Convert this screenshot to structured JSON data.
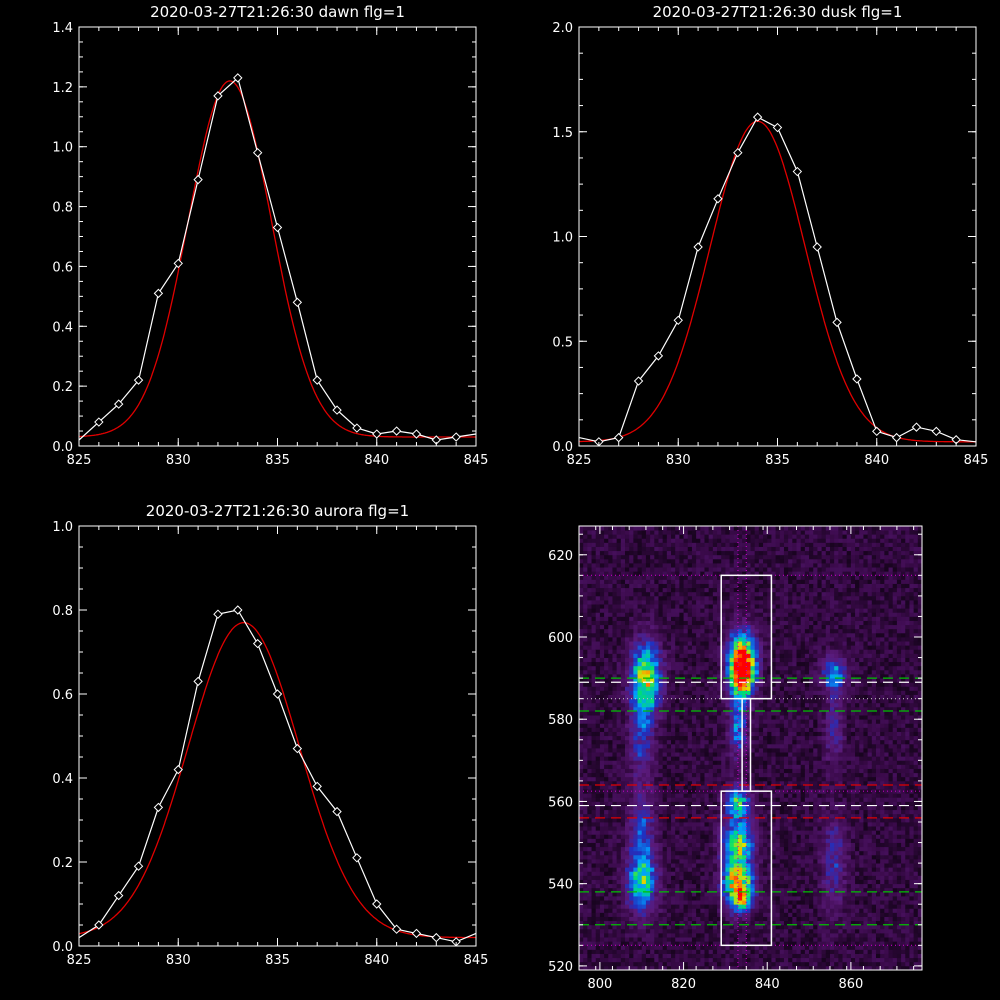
{
  "chart_data": [
    {
      "id": "dawn",
      "type": "line",
      "title": "2020-03-27T21:26:30 dawn flg=1",
      "xlim": [
        825,
        845
      ],
      "ylim": [
        0,
        1.4
      ],
      "xticks": [
        "825",
        "830",
        "835",
        "840",
        "845"
      ],
      "yticks": [
        "0.0",
        "0.2",
        "0.4",
        "0.6",
        "0.8",
        "1.0",
        "1.2",
        "1.4"
      ],
      "xtick_values": [
        825,
        830,
        835,
        840,
        845
      ],
      "ytick_values": [
        0,
        0.2,
        0.4,
        0.6,
        0.8,
        1.0,
        1.2,
        1.4
      ],
      "series": [
        {
          "style": "white-diamond-line",
          "x": [
            825,
            826,
            827,
            828,
            829,
            830,
            831,
            832,
            833,
            834,
            835,
            836,
            837,
            838,
            839,
            840,
            841,
            842,
            843,
            844,
            845
          ],
          "y": [
            0.02,
            0.08,
            0.14,
            0.22,
            0.51,
            0.61,
            0.89,
            1.17,
            1.23,
            0.98,
            0.73,
            0.48,
            0.22,
            0.12,
            0.06,
            0.04,
            0.05,
            0.04,
            0.02,
            0.03,
            0.04
          ]
        },
        {
          "style": "red-gaussian-fit",
          "amplitude": 1.19,
          "center": 832.6,
          "sigma": 2.1,
          "baseline": 0.03
        }
      ],
      "colors": {
        "data": "#ffffff",
        "fit": "#e00000"
      }
    },
    {
      "id": "dusk",
      "type": "line",
      "title": "2020-03-27T21:26:30 dusk flg=1",
      "xlim": [
        825,
        845
      ],
      "ylim": [
        0,
        2.0
      ],
      "xticks": [
        "825",
        "830",
        "835",
        "840",
        "845"
      ],
      "yticks": [
        "0.0",
        "0.5",
        "1.0",
        "1.5",
        "2.0"
      ],
      "xtick_values": [
        825,
        830,
        835,
        840,
        845
      ],
      "ytick_values": [
        0,
        0.5,
        1.0,
        1.5,
        2.0
      ],
      "series": [
        {
          "style": "white-diamond-line",
          "x": [
            825,
            826,
            827,
            828,
            829,
            830,
            831,
            832,
            833,
            834,
            835,
            836,
            837,
            838,
            839,
            840,
            841,
            842,
            843,
            844,
            845
          ],
          "y": [
            0.04,
            0.02,
            0.04,
            0.31,
            0.43,
            0.6,
            0.95,
            1.18,
            1.4,
            1.57,
            1.52,
            1.31,
            0.95,
            0.59,
            0.32,
            0.07,
            0.04,
            0.09,
            0.07,
            0.03,
            0.02
          ]
        },
        {
          "style": "red-gaussian-fit",
          "amplitude": 1.53,
          "center": 834.0,
          "sigma": 2.4,
          "baseline": 0.02
        }
      ],
      "colors": {
        "data": "#ffffff",
        "fit": "#e00000"
      }
    },
    {
      "id": "aurora",
      "type": "line",
      "title": "2020-03-27T21:26:30 aurora flg=1",
      "xlim": [
        825,
        845
      ],
      "ylim": [
        0,
        1.0
      ],
      "xticks": [
        "825",
        "830",
        "835",
        "840",
        "845"
      ],
      "yticks": [
        "0.0",
        "0.2",
        "0.4",
        "0.6",
        "0.8",
        "1.0"
      ],
      "xtick_values": [
        825,
        830,
        835,
        840,
        845
      ],
      "ytick_values": [
        0,
        0.2,
        0.4,
        0.6,
        0.8,
        1.0
      ],
      "series": [
        {
          "style": "white-diamond-line",
          "x": [
            825,
            826,
            827,
            828,
            829,
            830,
            831,
            832,
            833,
            834,
            835,
            836,
            837,
            838,
            839,
            840,
            841,
            842,
            843,
            844,
            845
          ],
          "y": [
            0.02,
            0.05,
            0.12,
            0.19,
            0.33,
            0.42,
            0.63,
            0.79,
            0.8,
            0.72,
            0.6,
            0.47,
            0.38,
            0.32,
            0.21,
            0.1,
            0.04,
            0.03,
            0.02,
            0.01,
            0.03
          ]
        },
        {
          "style": "red-gaussian-fit",
          "amplitude": 0.75,
          "center": 833.3,
          "sigma": 2.8,
          "baseline": 0.02
        }
      ],
      "colors": {
        "data": "#ffffff",
        "fit": "#e00000"
      }
    },
    {
      "id": "image",
      "type": "heatmap",
      "title": "",
      "xlim": [
        795,
        877
      ],
      "ylim": [
        519,
        627
      ],
      "xticks": [
        "800",
        "820",
        "840",
        "860"
      ],
      "yticks": [
        "520",
        "540",
        "560",
        "580",
        "600",
        "620"
      ],
      "xtick_values": [
        800,
        820,
        840,
        860
      ],
      "ytick_values": [
        520,
        540,
        560,
        580,
        600,
        620
      ],
      "colormap": [
        "#000000",
        "#3a0a4a",
        "#5a1a7a",
        "#2030c0",
        "#00a0ff",
        "#00e070",
        "#e0e000",
        "#ff8000",
        "#ff0000"
      ],
      "blobs": [
        {
          "x": 811,
          "y": 590,
          "sx": 2.5,
          "sy": 6,
          "amp": 0.62
        },
        {
          "x": 810,
          "y": 575,
          "sx": 2.0,
          "sy": 7,
          "amp": 0.25
        },
        {
          "x": 810,
          "y": 540,
          "sx": 2.5,
          "sy": 5,
          "amp": 0.5
        },
        {
          "x": 810,
          "y": 553,
          "sx": 2.0,
          "sy": 6,
          "amp": 0.3
        },
        {
          "x": 834,
          "y": 591,
          "sx": 2.0,
          "sy": 4,
          "amp": 1.0
        },
        {
          "x": 834,
          "y": 597,
          "sx": 2.5,
          "sy": 4,
          "amp": 0.45
        },
        {
          "x": 833,
          "y": 578,
          "sx": 1.5,
          "sy": 5,
          "amp": 0.35
        },
        {
          "x": 833,
          "y": 550,
          "sx": 2.5,
          "sy": 4,
          "amp": 0.55
        },
        {
          "x": 833,
          "y": 540,
          "sx": 2.5,
          "sy": 4,
          "amp": 0.7
        },
        {
          "x": 834,
          "y": 536,
          "sx": 1.5,
          "sy": 2,
          "amp": 0.35
        },
        {
          "x": 833,
          "y": 560,
          "sx": 2.0,
          "sy": 3,
          "amp": 0.45
        },
        {
          "x": 856,
          "y": 591,
          "sx": 2.0,
          "sy": 3,
          "amp": 0.4
        },
        {
          "x": 856,
          "y": 577,
          "sx": 1.5,
          "sy": 6,
          "amp": 0.2
        },
        {
          "x": 856,
          "y": 545,
          "sx": 2.0,
          "sy": 8,
          "amp": 0.22
        }
      ],
      "boxes": [
        {
          "x0": 829,
          "x1": 841,
          "y0": 585,
          "y1": 615
        },
        {
          "x0": 829,
          "x1": 841,
          "y0": 525,
          "y1": 562.5
        },
        {
          "x0": 834,
          "x1": 836,
          "y0": 562.5,
          "y1": 585
        }
      ],
      "hlines": [
        {
          "y": 615,
          "color": "#c000c0",
          "dash": "1,3"
        },
        {
          "y": 525,
          "color": "#c000c0",
          "dash": "1,3"
        },
        {
          "y": 562.5,
          "color": "#c000c0",
          "dash": "1,3"
        },
        {
          "y": 590,
          "color": "#00c000",
          "dash": "10,6"
        },
        {
          "y": 589,
          "color": "#ffffff",
          "dash": "10,6"
        },
        {
          "y": 582,
          "color": "#00c000",
          "dash": "10,6"
        },
        {
          "y": 585,
          "color": "#c0c0c0",
          "dash": "1,3"
        },
        {
          "y": 564,
          "color": "#e00000",
          "dash": "10,6"
        },
        {
          "y": 559,
          "color": "#ffffff",
          "dash": "10,6"
        },
        {
          "y": 556,
          "color": "#e00000",
          "dash": "10,6"
        },
        {
          "y": 538,
          "color": "#00c000",
          "dash": "10,6"
        },
        {
          "y": 530,
          "color": "#00c000",
          "dash": "10,6"
        }
      ],
      "vlines": [
        {
          "x": 833,
          "color": "#c000c0",
          "dash": "1,3"
        },
        {
          "x": 835,
          "color": "#c000c0",
          "dash": "1,3"
        }
      ]
    }
  ]
}
